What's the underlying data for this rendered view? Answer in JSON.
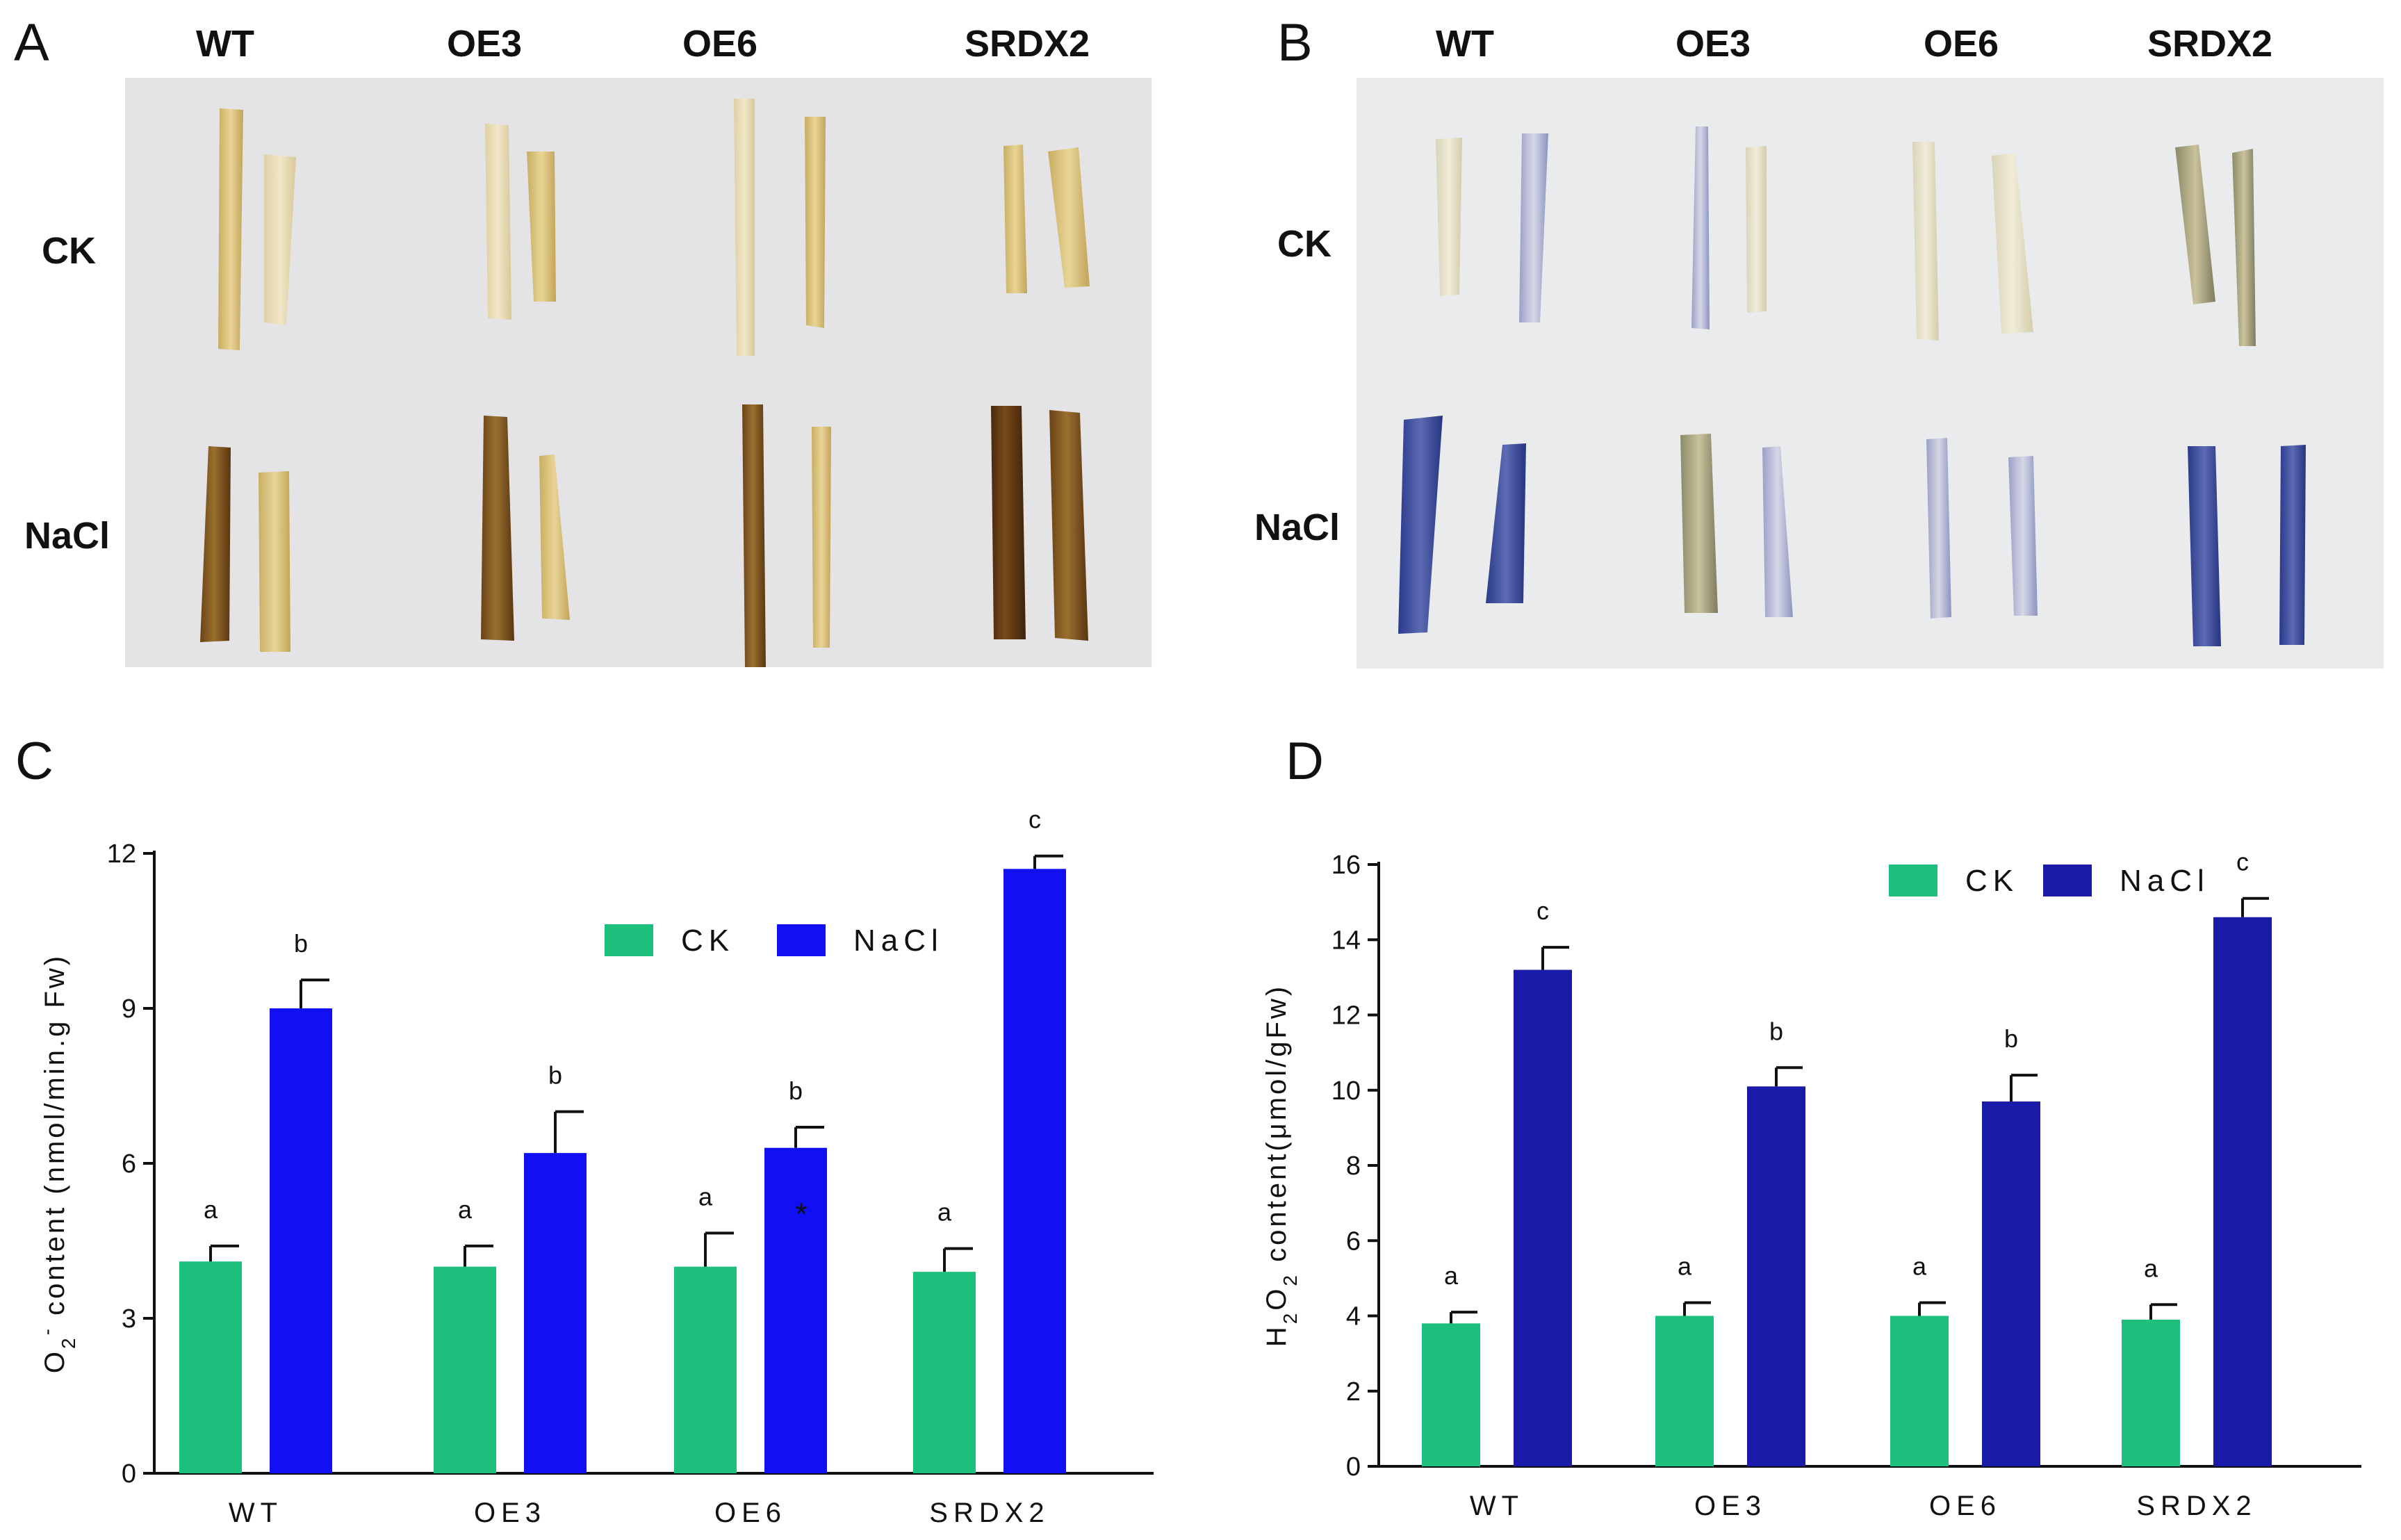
{
  "figure": {
    "panel_a": {
      "letter": "A",
      "columns": [
        "WT",
        "OE3",
        "OE6",
        "SRDX2"
      ],
      "rows": [
        "CK",
        "NaCl"
      ]
    },
    "panel_b": {
      "letter": "B",
      "columns": [
        "WT",
        "OE3",
        "OE6",
        "SRDX2"
      ],
      "rows": [
        "CK",
        "NaCl"
      ]
    },
    "panel_c": {
      "letter": "C"
    },
    "panel_d": {
      "letter": "D"
    }
  },
  "colors": {
    "ck": "#1dbf7c",
    "nacl_c": "#1010f2",
    "nacl_d": "#1a1aa8",
    "photo_bg_a": "#e3e2e5",
    "photo_bg_b": "#eaebed",
    "dab_light": "#d9c27a",
    "dab_dark": "#7a4f1a",
    "nbt_light": "#e8e4cf",
    "nbt_dark": "#2f3f9a"
  },
  "chart_data": [
    {
      "type": "bar",
      "title": "",
      "panel": "C",
      "ylabel_parts": [
        "O",
        "2",
        "-",
        " content (nmol/min.g Fw)"
      ],
      "xlabel": "",
      "categories": [
        "WT",
        "OE3",
        "OE6",
        "SRDX2"
      ],
      "ylim": [
        0,
        12
      ],
      "yticks": [
        0,
        3,
        6,
        9,
        12
      ],
      "legend": {
        "placement": "top-right",
        "entries": [
          "CK",
          "NaCl"
        ]
      },
      "series": [
        {
          "name": "CK",
          "values": [
            4.1,
            4.0,
            4.0,
            3.9
          ],
          "errors": [
            0.3,
            0.4,
            0.65,
            0.45
          ],
          "letters": [
            "a",
            "a",
            "a",
            "a"
          ]
        },
        {
          "name": "NaCl",
          "values": [
            9.0,
            6.2,
            6.3,
            11.7
          ],
          "errors": [
            0.55,
            0.8,
            0.4,
            0.25
          ],
          "letters": [
            "b",
            "b",
            "b",
            "c"
          ]
        }
      ],
      "annotations": [
        {
          "text": "*",
          "category": "OE6",
          "series": "NaCl"
        }
      ]
    },
    {
      "type": "bar",
      "title": "",
      "panel": "D",
      "ylabel_parts": [
        "H",
        "2",
        "O",
        "2",
        " content(μmol/gFw)"
      ],
      "xlabel": "",
      "categories": [
        "WT",
        "OE3",
        "OE6",
        "SRDX2"
      ],
      "ylim": [
        0,
        16
      ],
      "yticks": [
        0,
        2,
        4,
        6,
        8,
        10,
        12,
        14,
        16
      ],
      "legend": {
        "placement": "top-right",
        "entries": [
          "CK",
          "NaCl"
        ]
      },
      "series": [
        {
          "name": "CK",
          "values": [
            3.8,
            4.0,
            4.0,
            3.9
          ],
          "errors": [
            0.3,
            0.35,
            0.35,
            0.4
          ],
          "letters": [
            "a",
            "a",
            "a",
            "a"
          ]
        },
        {
          "name": "NaCl",
          "values": [
            13.2,
            10.1,
            9.7,
            14.6
          ],
          "errors": [
            0.6,
            0.5,
            0.7,
            0.5
          ],
          "letters": [
            "c",
            "b",
            "b",
            "c"
          ]
        }
      ]
    }
  ]
}
